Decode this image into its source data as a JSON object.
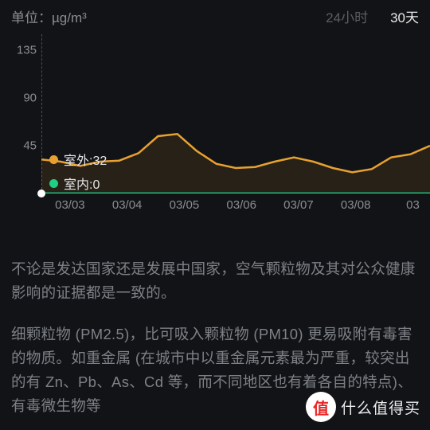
{
  "header": {
    "unit_label": "单位：",
    "unit_value": "µg/m³",
    "tab_24h": "24小时",
    "tab_30d": "30天"
  },
  "chart": {
    "type": "line",
    "background_color": "#121316",
    "grid_color": "#4b4e53",
    "ylim": [
      0,
      150
    ],
    "yticks": [
      45,
      90,
      135
    ],
    "xlabels": [
      "03/03",
      "03/04",
      "03/05",
      "03/06",
      "03/07",
      "03/08",
      "03"
    ],
    "series": {
      "outdoor": {
        "label": "室外",
        "value_at_cursor": 32,
        "color": "#e7a131",
        "fill_opacity": 0.1,
        "line_width": 2.5,
        "points": [
          32,
          30,
          26,
          30,
          31,
          38,
          54,
          56,
          40,
          28,
          24,
          25,
          30,
          34,
          30,
          24,
          20,
          23,
          34,
          37,
          45
        ]
      },
      "indoor": {
        "label": "室内",
        "value_at_cursor": 0,
        "color": "#1fcf82",
        "line_width": 2.8,
        "points": [
          0,
          0,
          0,
          0,
          0,
          0,
          0,
          0,
          0,
          0,
          0,
          0,
          0,
          0,
          0,
          0,
          0,
          0,
          0,
          0,
          0
        ]
      }
    },
    "tick_fontsize": 15,
    "tick_color": "#8a8d92",
    "tooltip_fontsize": 16
  },
  "body": {
    "p1": "不论是发达国家还是发展中国家，空气颗粒物及其对公众健康影响的证据都是一致的。",
    "p2": "细颗粒物 (PM2.5)，比可吸入颗粒物 (PM10) 更易吸附有毒害的物质。如重金属 (在城市中以重金属元素最为严重，较突出的有 Zn、Pb、As、Cd 等，而不同地区也有着各自的特点)、有毒微生物等"
  },
  "badge": {
    "symbol": "值",
    "text": "什么值得买"
  }
}
